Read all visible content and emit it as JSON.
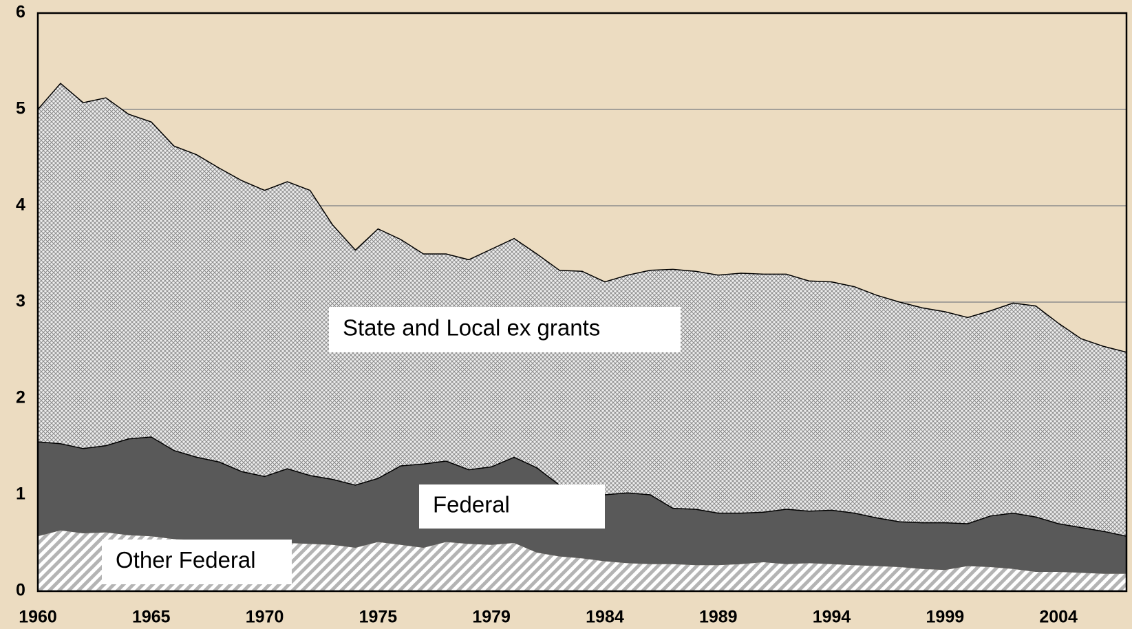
{
  "chart_data": {
    "type": "stacked_area",
    "categories": [
      "1960",
      null,
      null,
      null,
      null,
      "1965",
      null,
      null,
      null,
      null,
      "1970",
      null,
      null,
      null,
      null,
      "1975",
      null,
      null,
      null,
      null,
      "1979",
      null,
      null,
      null,
      null,
      "1984",
      null,
      null,
      null,
      null,
      "1989",
      null,
      null,
      null,
      null,
      "1994",
      null,
      null,
      null,
      null,
      "1999",
      null,
      null,
      null,
      null,
      "2004",
      null,
      null,
      null
    ],
    "series": [
      {
        "name": "Other Federal",
        "color": "#b8b8b8",
        "pattern": "hatch",
        "values": [
          0.57,
          0.63,
          0.6,
          0.61,
          0.58,
          0.57,
          0.54,
          0.53,
          0.52,
          0.51,
          0.5,
          0.5,
          0.49,
          0.48,
          0.45,
          0.51,
          0.48,
          0.45,
          0.51,
          0.49,
          0.48,
          0.5,
          0.4,
          0.36,
          0.34,
          0.31,
          0.29,
          0.28,
          0.28,
          0.27,
          0.27,
          0.28,
          0.3,
          0.28,
          0.29,
          0.28,
          0.27,
          0.26,
          0.25,
          0.23,
          0.22,
          0.26,
          0.25,
          0.23,
          0.2,
          0.2,
          0.19,
          0.18,
          0.18
        ]
      },
      {
        "name": "Federal",
        "color": "#595959",
        "pattern": "solid",
        "values": [
          0.98,
          0.9,
          0.88,
          0.9,
          1.0,
          1.03,
          0.92,
          0.86,
          0.82,
          0.73,
          0.69,
          0.77,
          0.71,
          0.68,
          0.65,
          0.66,
          0.82,
          0.87,
          0.84,
          0.77,
          0.81,
          0.89,
          0.88,
          0.74,
          0.66,
          0.69,
          0.73,
          0.72,
          0.58,
          0.58,
          0.54,
          0.53,
          0.52,
          0.57,
          0.54,
          0.56,
          0.54,
          0.5,
          0.47,
          0.48,
          0.49,
          0.44,
          0.53,
          0.58,
          0.57,
          0.5,
          0.47,
          0.44,
          0.39
        ]
      },
      {
        "name": "State and Local ex grants",
        "color": "#c8c8c8",
        "pattern": "crosshatch",
        "values": [
          3.45,
          3.74,
          3.59,
          3.61,
          3.37,
          3.27,
          3.16,
          3.14,
          3.05,
          3.02,
          2.97,
          2.98,
          2.96,
          2.64,
          2.44,
          2.59,
          2.35,
          2.18,
          2.15,
          2.18,
          2.26,
          2.27,
          2.22,
          2.23,
          2.32,
          2.21,
          2.26,
          2.33,
          2.48,
          2.47,
          2.47,
          2.49,
          2.47,
          2.44,
          2.39,
          2.37,
          2.35,
          2.31,
          2.28,
          2.23,
          2.19,
          2.14,
          2.13,
          2.18,
          2.19,
          2.08,
          1.96,
          1.92,
          1.91
        ]
      }
    ],
    "ylim": [
      0,
      6
    ],
    "yticks": [
      0,
      1,
      2,
      3,
      4,
      5,
      6
    ],
    "grid": true,
    "background": "#ecdcc1"
  }
}
